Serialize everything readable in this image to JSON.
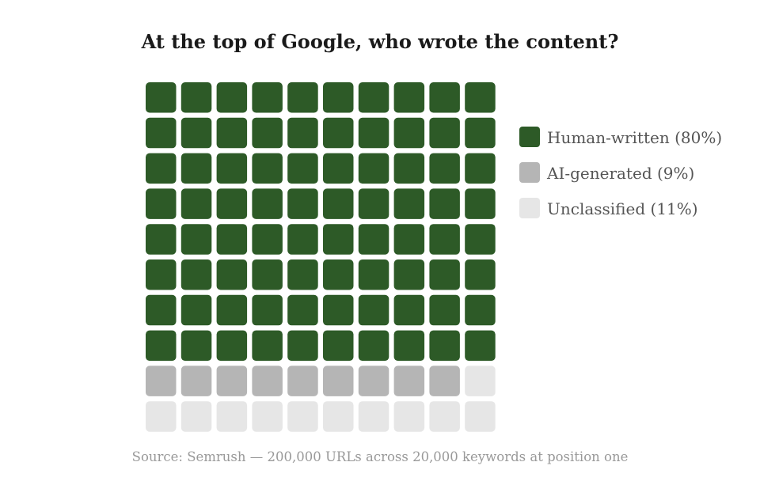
{
  "chart_data": {
    "type": "waffle",
    "title": "At the top of Google, who wrote the content?",
    "source": "Source: Semrush — 200,000 URLs across 20,000 keywords at position one",
    "grid": {
      "rows": 10,
      "cols": 10
    },
    "legend_position": "right",
    "series": [
      {
        "name": "Human-written (80%)",
        "value": 80,
        "color": "#2d5a27"
      },
      {
        "name": "AI-generated (9%)",
        "value": 9,
        "color": "#b5b5b5"
      },
      {
        "name": "Unclassified (11%)",
        "value": 11,
        "color": "#e6e6e6"
      }
    ]
  }
}
